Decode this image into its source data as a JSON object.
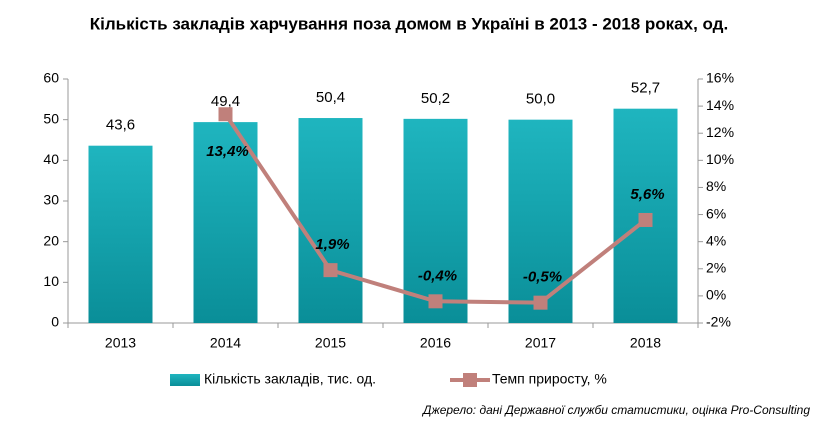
{
  "chart_data": {
    "type": "bar_line",
    "title": "Кількість закладів харчування поза домом в Україні в 2013 - 2018 роках, од.",
    "source": "Джерело: дані Державної служби статистики, оцінка Pro-Consulting",
    "categories": [
      "2013",
      "2014",
      "2015",
      "2016",
      "2017",
      "2018"
    ],
    "series": [
      {
        "name": "Кількість закладів, тис. од.",
        "color": "#0fa3ad",
        "type": "bar",
        "values": [
          43.6,
          49.4,
          50.4,
          50.2,
          50.0,
          52.7
        ],
        "value_labels": [
          "43,6",
          "49,4",
          "50,4",
          "50,2",
          "50,0",
          "52,7"
        ]
      },
      {
        "name": "Темп приросту, %",
        "color": "#c0807b",
        "type": "line",
        "axis": "y2",
        "values": [
          null,
          13.4,
          1.9,
          -0.4,
          -0.5,
          5.6
        ],
        "value_labels": [
          null,
          "13,4%",
          "1,9%",
          "-0,4%",
          "-0,5%",
          "5,6%"
        ]
      }
    ],
    "ylim": [
      0,
      60
    ],
    "yticks": [
      0,
      10,
      20,
      30,
      40,
      50,
      60
    ],
    "y2lim": [
      -2,
      16
    ],
    "y2ticks": [
      {
        "value": -2,
        "label": "-2%"
      },
      {
        "value": 0,
        "label": "0%"
      },
      {
        "value": 2,
        "label": "2%"
      },
      {
        "value": 4,
        "label": "4%"
      },
      {
        "value": 6,
        "label": "6%"
      },
      {
        "value": 8,
        "label": "8%"
      },
      {
        "value": 10,
        "label": "10%"
      },
      {
        "value": 12,
        "label": "12%"
      },
      {
        "value": 14,
        "label": "14%"
      },
      {
        "value": 16,
        "label": "16%"
      }
    ],
    "grid": false,
    "legend": "bottom"
  }
}
